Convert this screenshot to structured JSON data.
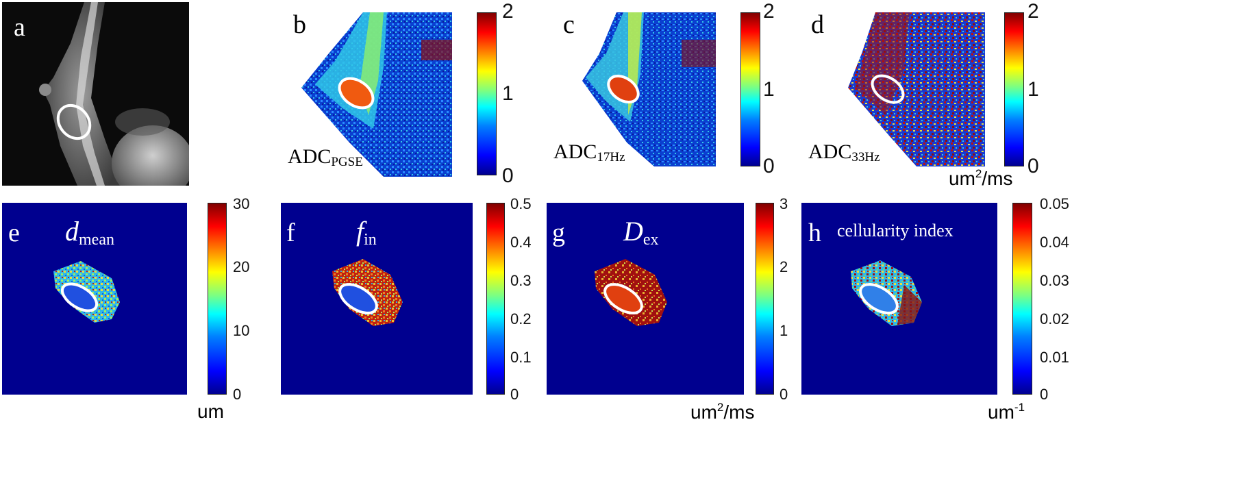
{
  "top_row": {
    "a": {
      "letter": "a"
    },
    "b": {
      "letter": "b",
      "label_main": "ADC",
      "label_sub": "PGSE",
      "ticks": [
        "2",
        "1",
        "0"
      ]
    },
    "c": {
      "letter": "c",
      "label_main": "ADC",
      "label_sub": "17Hz",
      "ticks": [
        "2",
        "1",
        "0"
      ]
    },
    "d": {
      "letter": "d",
      "label_main": "ADC",
      "label_sub": "33Hz",
      "ticks": [
        "2",
        "1",
        "0"
      ]
    },
    "unit_main": "um",
    "unit_sup": "2",
    "unit_rest": "/ms"
  },
  "bottom_row": {
    "e": {
      "letter": "e",
      "title_main": "d",
      "title_sub": "mean",
      "ticks": [
        "30",
        "20",
        "10",
        "0"
      ],
      "unit_main": "um"
    },
    "f": {
      "letter": "f",
      "title_main": "f",
      "title_sub": "in",
      "ticks": [
        "0.5",
        "0.4",
        "0.3",
        "0.2",
        "0.1",
        "0"
      ]
    },
    "g": {
      "letter": "g",
      "title_main": "D",
      "title_sub": "ex",
      "ticks": [
        "3",
        "2",
        "1",
        "0"
      ],
      "unit_main": "um",
      "unit_sup": "2",
      "unit_rest": "/ms"
    },
    "h": {
      "letter": "h",
      "title_text": "cellularity index",
      "ticks": [
        "0.05",
        "0.04",
        "0.03",
        "0.02",
        "0.01",
        "0"
      ],
      "unit_main": "um",
      "unit_sup": "-1"
    }
  },
  "colors": {
    "colormap": "jet",
    "map_background": "#00008f",
    "roi_outline": "#ffffff"
  }
}
